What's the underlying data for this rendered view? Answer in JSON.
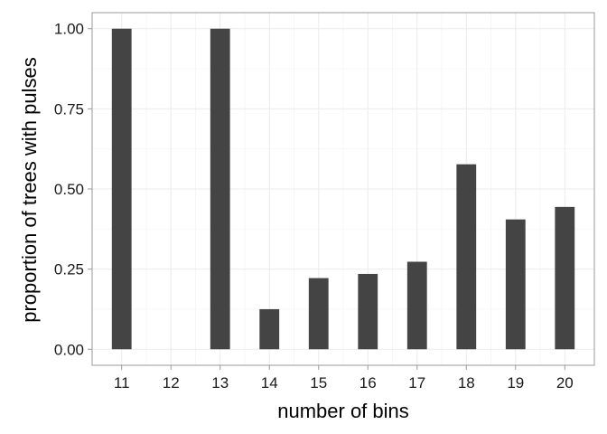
{
  "chart_data": {
    "type": "bar",
    "xlabel": "number of bins",
    "ylabel": "proportion of trees with pulses",
    "categories": [
      "11",
      "12",
      "13",
      "14",
      "15",
      "16",
      "17",
      "18",
      "19",
      "20"
    ],
    "values": [
      1.0,
      0.0,
      1.0,
      0.125,
      0.222,
      0.235,
      0.273,
      0.577,
      0.405,
      0.444
    ],
    "ylim": [
      -0.05,
      1.05
    ],
    "yticks": [
      0.0,
      0.25,
      0.5,
      0.75,
      1.0
    ],
    "ytick_labels": [
      "0.00",
      "0.25",
      "0.50",
      "0.75",
      "1.00"
    ],
    "grid": true,
    "colors": {
      "bar": "#444444",
      "grid_major": "#ebebeb",
      "grid_minor": "#f5f5f5",
      "border": "#999999"
    }
  }
}
